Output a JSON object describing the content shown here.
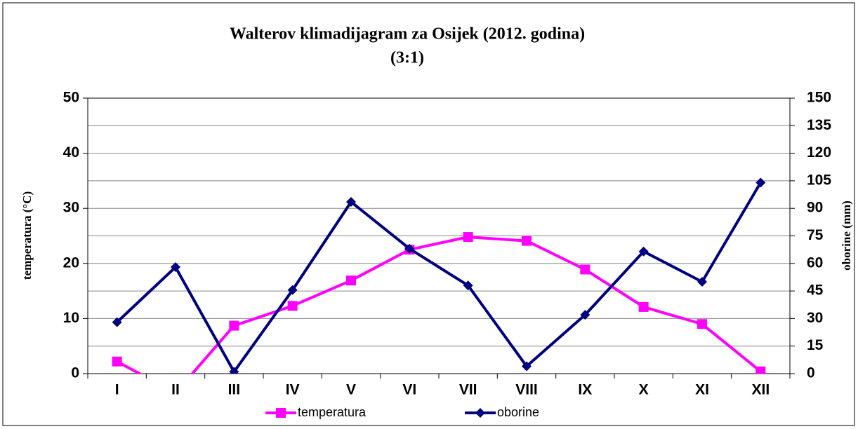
{
  "chart_data": {
    "type": "line",
    "title": "Walterov klimadijagram za Osijek (2012. godina)",
    "subtitle": "(3:1)",
    "y_label": "temperatura (°C)",
    "y2_label": "oborine (mm)",
    "categories": [
      "I",
      "II",
      "III",
      "IV",
      "V",
      "VI",
      "VII",
      "VIII",
      "IX",
      "X",
      "XI",
      "XII"
    ],
    "series": [
      {
        "name": "temperatura",
        "color": "#ff00ff",
        "marker": "square",
        "values": [
          2.2,
          -3.5,
          8.7,
          12.3,
          16.9,
          22.5,
          24.8,
          24.1,
          18.9,
          12.1,
          9.0,
          0.4
        ]
      },
      {
        "name": "oborine",
        "color": "#000080",
        "marker": "diamond",
        "axis": "y2",
        "values": [
          28,
          58,
          1,
          45.5,
          93.5,
          68,
          48,
          4,
          32,
          66.5,
          50,
          104
        ]
      }
    ],
    "ylim": [
      0,
      50
    ],
    "yticks": [
      0,
      10,
      20,
      30,
      40,
      50
    ],
    "y2lim": [
      0,
      150
    ],
    "y2ticks": [
      0,
      15,
      30,
      45,
      60,
      75,
      90,
      105,
      120,
      135,
      150
    ],
    "grid": true,
    "legend": "bottom"
  }
}
